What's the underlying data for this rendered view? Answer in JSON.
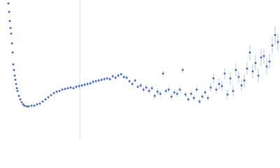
{
  "chart_data": {
    "type": "scatter",
    "color": "#4a72c4",
    "error_color": "#b8c8e6",
    "xlim": [
      0,
      400
    ],
    "ylim": [
      0,
      200
    ],
    "vline": 114,
    "vline_color": "#d8d8d8",
    "x": [
      12,
      13,
      14,
      15,
      16,
      17,
      18,
      19,
      20,
      21,
      22,
      23,
      24,
      25,
      27,
      29,
      31,
      33,
      35,
      38,
      41,
      45,
      49,
      53,
      57,
      61,
      65,
      69,
      73,
      77,
      81,
      85,
      89,
      93,
      97,
      101,
      105,
      109,
      113,
      117,
      121,
      125,
      129,
      133,
      137,
      141,
      145,
      149,
      153,
      157,
      161,
      165,
      169,
      173,
      177,
      181,
      185,
      189,
      193,
      197,
      201,
      205,
      209,
      213,
      217,
      221,
      225,
      229,
      233,
      237,
      241,
      245,
      249,
      253,
      257,
      261,
      265,
      269,
      273,
      277,
      281,
      285,
      289,
      293,
      297,
      301,
      305,
      309,
      313,
      317,
      321,
      325,
      329,
      333,
      337,
      341,
      345,
      349,
      353,
      357,
      361,
      365,
      369,
      373,
      377,
      381,
      385,
      389,
      393,
      397
    ],
    "values": [
      195,
      183,
      170,
      160,
      152,
      138,
      125,
      108,
      100,
      92,
      86,
      80,
      74,
      70,
      63,
      58,
      54,
      51,
      49,
      48,
      48,
      49,
      49,
      51,
      52,
      55,
      58,
      61,
      64,
      67,
      69,
      70,
      72,
      73,
      74,
      75,
      74,
      76,
      77,
      78,
      79,
      80,
      81,
      83,
      84,
      85,
      86,
      87,
      88,
      87,
      91,
      89,
      92,
      94,
      90,
      89,
      84,
      80,
      85,
      76,
      78,
      72,
      75,
      70,
      74,
      63,
      69,
      66,
      95,
      70,
      72,
      62,
      68,
      66,
      72,
      100,
      65,
      58,
      66,
      60,
      72,
      55,
      62,
      68,
      60,
      75,
      88,
      72,
      80,
      77,
      95,
      65,
      88,
      70,
      100,
      90,
      78,
      85,
      102,
      125,
      98,
      110,
      92,
      118,
      120,
      105,
      112,
      135,
      150,
      140
    ],
    "errors": [
      1,
      1,
      1,
      1,
      1,
      1,
      1,
      1,
      1,
      1,
      1,
      1,
      1,
      1,
      1,
      1,
      1,
      1,
      1,
      1,
      1.5,
      1.5,
      1.5,
      1.5,
      1.5,
      1.5,
      1.5,
      1.5,
      1.5,
      1.5,
      1.5,
      1.5,
      1.5,
      1.5,
      1.5,
      2.5,
      2.5,
      2.5,
      2.5,
      2.5,
      2.5,
      2.5,
      2.5,
      2.5,
      2.5,
      2.5,
      2.5,
      2.5,
      2.5,
      2.5,
      2.5,
      2.5,
      2.5,
      2.5,
      2.5,
      2.5,
      2.5,
      2.5,
      2.5,
      2.5,
      4,
      4,
      4,
      4,
      4,
      4,
      4,
      4,
      4,
      4,
      4,
      4,
      4,
      4,
      4,
      4,
      4,
      4,
      4,
      4,
      4,
      4,
      4,
      4,
      4,
      6,
      7,
      6,
      8,
      7,
      8,
      7,
      9,
      8,
      9,
      8,
      9,
      10,
      9,
      11,
      10,
      11,
      10,
      12,
      11,
      12,
      11,
      12,
      13,
      12
    ]
  }
}
